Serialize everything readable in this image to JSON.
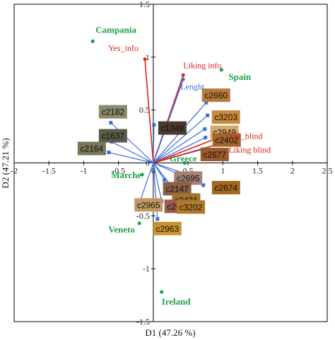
{
  "chart_data": {
    "type": "scatter",
    "title": "",
    "xlabel": "D1 (47.26 %)",
    "ylabel": "D2 (47.21 %)",
    "xlim": [
      -2,
      2.5
    ],
    "ylim": [
      -1.5,
      1.5
    ],
    "x_ticks": [
      "-2",
      "-1.5",
      "-1",
      "-0.5",
      "0",
      "0.5",
      "1",
      "1.5",
      "2",
      "2.5"
    ],
    "y_ticks": [
      "-1.5",
      "-1",
      "-0.5",
      "0",
      "0.5",
      "1",
      "1.5"
    ],
    "grid": false,
    "colors": {
      "country": "#22a04b",
      "red_vector": "#e0201b",
      "blue_vector": "#3a6fd8",
      "axis": "#000000"
    },
    "countries": [
      {
        "name": "Campania",
        "x": -0.87,
        "y": 1.15
      },
      {
        "name": "Spain",
        "x": 0.98,
        "y": 0.88
      },
      {
        "name": "Greece",
        "x": 0.45,
        "y": 0.0
      },
      {
        "name": "Marche",
        "x": -0.16,
        "y": -0.11
      },
      {
        "name": "Veneto",
        "x": -0.2,
        "y": -0.57
      },
      {
        "name": "Ireland",
        "x": 0.12,
        "y": -1.22
      }
    ],
    "variables": [
      {
        "name": "Yes_info",
        "x": -0.12,
        "y": 0.98,
        "color": "red"
      },
      {
        "name": "Liking info",
        "x": 0.43,
        "y": 0.83,
        "color": "red"
      },
      {
        "name": "Yes_blind",
        "x": 1.02,
        "y": 0.26,
        "color": "red"
      },
      {
        "name": "Liking blind",
        "x": 1.0,
        "y": 0.19,
        "color": "red"
      },
      {
        "name": "Lenght",
        "x": 0.43,
        "y": 0.79,
        "color": "blue"
      }
    ],
    "products": [
      {
        "name": "c2182",
        "x": -0.61,
        "y": 0.38,
        "bg": "#8c8a6c"
      },
      {
        "name": "c1637",
        "x": -0.6,
        "y": 0.2,
        "bg": "#5a5a48"
      },
      {
        "name": "c2164",
        "x": -0.64,
        "y": 0.1,
        "bg": "#7a7656"
      },
      {
        "name": "c1348",
        "x": 0.01,
        "y": 0.36,
        "bg": "#4a3a30"
      },
      {
        "name": "c2660",
        "x": 0.76,
        "y": 0.57,
        "bg": "#b87a3a"
      },
      {
        "name": "c3203",
        "x": 0.78,
        "y": 0.45,
        "bg": "#c88a3a"
      },
      {
        "name": "c2949",
        "x": 0.74,
        "y": 0.32,
        "bg": "#d4a868"
      },
      {
        "name": "c2402",
        "x": 0.75,
        "y": 0.24,
        "bg": "#a26428"
      },
      {
        "name": "c2677",
        "x": 0.72,
        "y": 0.13,
        "bg": "#9c5a2a"
      },
      {
        "name": "c2695",
        "x": 0.46,
        "y": -0.1,
        "bg": "#a68276"
      },
      {
        "name": "c2147",
        "x": 0.16,
        "y": -0.16,
        "bg": "#8a6046"
      },
      {
        "name": "c2674",
        "x": 0.72,
        "y": -0.21,
        "bg": "#a2681e"
      },
      {
        "name": "c2431",
        "x": 0.31,
        "y": -0.26,
        "bg": "#a0722e"
      },
      {
        "name": "c2678",
        "x": 0.12,
        "y": -0.36,
        "bg": "#9e5a4c"
      },
      {
        "name": "c2965",
        "x": -0.19,
        "y": -0.36,
        "bg": "#c09860"
      },
      {
        "name": "c3202",
        "x": 0.5,
        "y": -0.42,
        "bg": "#b07a2a"
      },
      {
        "name": "c2963",
        "x": 0.06,
        "y": -0.53,
        "bg": "#c8922e"
      }
    ]
  }
}
